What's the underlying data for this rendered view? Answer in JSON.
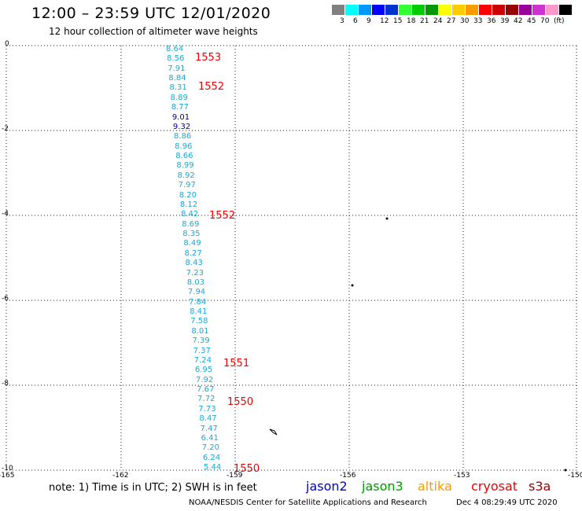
{
  "header": {
    "title": "12:00 – 23:59 UTC 12/01/2020",
    "subtitle": "12 hour collection of altimeter wave heights"
  },
  "legend": {
    "colors": [
      "#808080",
      "#00ffff",
      "#0099ff",
      "#0000ff",
      "#0033cc",
      "#33ff33",
      "#00cc00",
      "#009900",
      "#ffff00",
      "#ffcc00",
      "#ff9900",
      "#ff0000",
      "#cc0000",
      "#990000",
      "#990099",
      "#cc33cc",
      "#ff99cc",
      "#000000"
    ],
    "labels": [
      "3",
      "6",
      "9",
      "12",
      "15",
      "18",
      "21",
      "24",
      "27",
      "30",
      "33",
      "36",
      "39",
      "42",
      "45",
      "70",
      "(ft)"
    ]
  },
  "axes": {
    "x_ticks": [
      "-165",
      "-162",
      "-159",
      "-156",
      "-153",
      "-150"
    ],
    "y_ticks": [
      "0",
      "-2",
      "-4",
      "-6",
      "-8",
      "-10"
    ]
  },
  "passes": [
    "1553",
    "1552",
    "1552",
    "1551",
    "1550",
    "1550"
  ],
  "wave_heights": [
    "8.64",
    "8.56",
    "7.91",
    "8.84",
    "8.31",
    "8.89",
    "8.77",
    "9.01",
    "9.32",
    "8.86",
    "8.96",
    "8.66",
    "8.99",
    "8.92",
    "7.97",
    "8.20",
    "8.12",
    "8.42",
    "8.69",
    "8.35",
    "8.49",
    "8.27",
    "8.43",
    "7.23",
    "8.03",
    "7.94",
    "7.84",
    "8.41",
    "7.58",
    "8.01",
    "7.39",
    "7.37",
    "7.24",
    "6.95",
    "7.92",
    "7.67",
    "7.72",
    "7.73",
    "8.47",
    "7.47",
    "6.41",
    "7.20",
    "6.24",
    "5.44"
  ],
  "footer": {
    "note": "note:  1) Time is in UTC;  2) SWH is in feet",
    "satellites": [
      {
        "name": "jason2",
        "color": "#0000cc"
      },
      {
        "name": "jason3",
        "color": "#009900"
      },
      {
        "name": "altika",
        "color": "#ff9900"
      },
      {
        "name": "cryosat",
        "color": "#ee0000"
      },
      {
        "name": "s3a",
        "color": "#990000"
      }
    ],
    "credit": "NOAA/NESDIS Center for Satellite Applications and Research",
    "timestamp": "Dec  4 08:29:49 UTC 2020"
  }
}
